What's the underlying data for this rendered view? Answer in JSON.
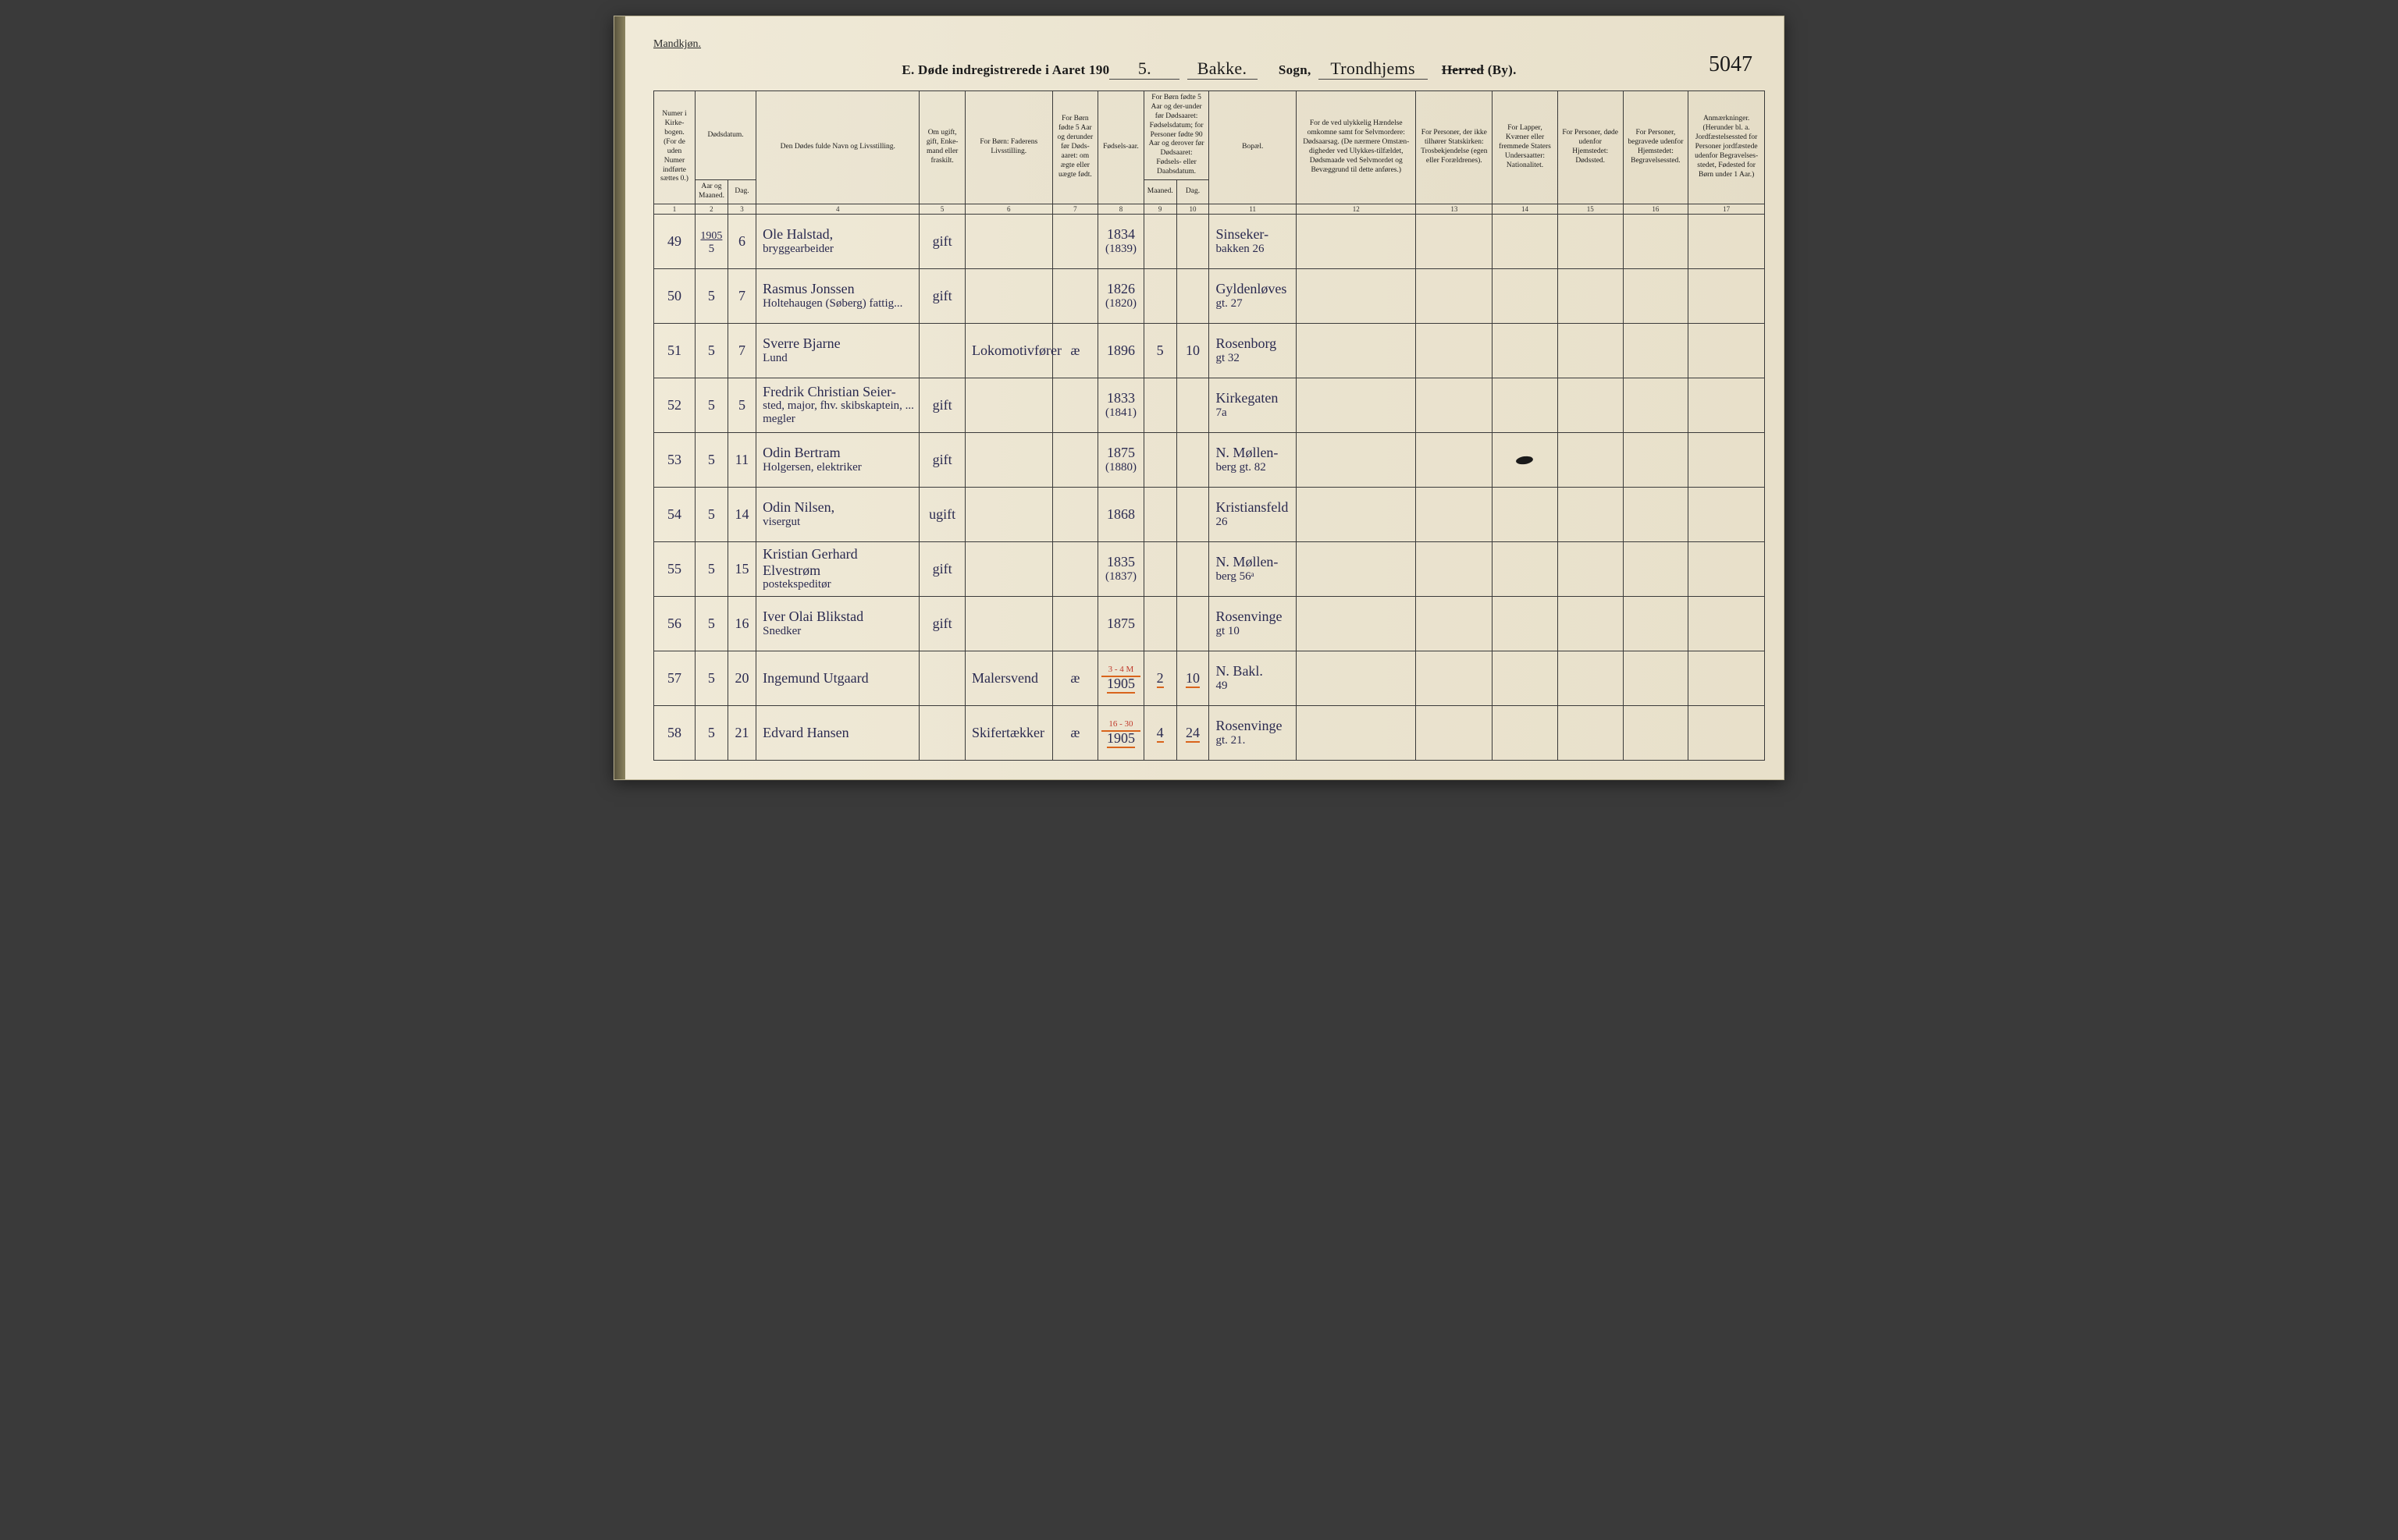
{
  "page": {
    "gender_label": "Mandkjøn.",
    "title_prefix": "E.  Døde indregistrerede i Aaret 190",
    "year_suffix": "5.",
    "parish_word": "Bakke.",
    "sogn_label": "Sogn,",
    "district_cursive": "Trondhjems",
    "herred_strike": "Herred",
    "by_label": "(By).",
    "page_code": "5047"
  },
  "headers": {
    "c1": "Numer i Kirke-bogen. (For de uden Numer indførte sættes 0.)",
    "c2_group": "Dødsdatum.",
    "c2": "Aar og Maaned.",
    "c3": "Dag.",
    "c4": "Den Dødes fulde Navn og Livsstilling.",
    "c5": "Om ugift, gift, Enke-mand eller fraskilt.",
    "c6": "For Børn: Faderens Livsstilling.",
    "c7": "For Børn fødte 5 Aar og derunder før Døds-aaret: om ægte eller uægte født.",
    "c8": "Fødsels-aar.",
    "c9_10_group": "For Børn fødte 5 Aar og der-under før Dødsaaret: Fødselsdatum; for Personer fødte 90 Aar og derover før Dødsaaret: Fødsels- eller Daabsdatum.",
    "c9": "Maaned.",
    "c10": "Dag.",
    "c11": "Bopæl.",
    "c12": "For de ved ulykkelig Hændelse omkomne samt for Selvmordere: Dødsaarsag. (De nærmere Omstæn-digheder ved Ulykkes-tilfældet, Dødsmaade ved Selvmordet og Bevæggrund til dette anføres.)",
    "c13": "For Personer, der ikke tilhører Statskirken: Trosbekjendelse (egen eller Forældrenes).",
    "c14": "For Lapper, Kvæner eller fremmede Staters Undersaatter: Nationalitet.",
    "c15": "For Personer, døde udenfor Hjemstedet: Dødssted.",
    "c16": "For Personer, begravede udenfor Hjemstedet: Begravelsessted.",
    "c17": "Anmærkninger. (Herunder bl. a. Jordfæstelsessted for Personer jordfæstede udenfor Begravelses-stedet, Fødested for Børn under 1 Aar.)"
  },
  "colnums": [
    "1",
    "2",
    "3",
    "4",
    "5",
    "6",
    "7",
    "8",
    "9",
    "10",
    "11",
    "12",
    "13",
    "14",
    "15",
    "16",
    "17"
  ],
  "rows": [
    {
      "num": "49",
      "year_top": "1905",
      "month": "5",
      "day": "6",
      "name": "Ole Halstad,",
      "name_sub": "bryggearbeider",
      "status": "gift",
      "father": "",
      "legit": "",
      "birth": "1834",
      "birth_sub": "(1839)",
      "bm": "",
      "bd": "",
      "residence": "Sinseker-",
      "residence_sub": "bakken 26",
      "c12": "",
      "c13": "",
      "c14": "",
      "c15": "",
      "c16": "",
      "c17": ""
    },
    {
      "num": "50",
      "month": "5",
      "day": "7",
      "name": "Rasmus Jonssen",
      "name_sub": "Holtehaugen (Søberg) fattig...",
      "status": "gift",
      "father": "",
      "legit": "",
      "birth": "1826",
      "birth_sub": "(1820)",
      "bm": "",
      "bd": "",
      "residence": "Gyldenløves",
      "residence_sub": "gt. 27",
      "c12": "",
      "c13": "",
      "c14": "",
      "c15": "",
      "c16": "",
      "c17": ""
    },
    {
      "num": "51",
      "month": "5",
      "day": "7",
      "name": "Sverre Bjarne",
      "name_sub": "Lund",
      "status": "",
      "father": "Lokomotivfører",
      "legit": "æ",
      "birth": "1896",
      "birth_sub": "",
      "bm": "5",
      "bd": "10",
      "residence": "Rosenborg",
      "residence_sub": "gt 32",
      "c12": "",
      "c13": "",
      "c14": "",
      "c15": "",
      "c16": "",
      "c17": ""
    },
    {
      "num": "52",
      "month": "5",
      "day": "5",
      "name": "Fredrik Christian Seier-",
      "name_sub": "sted, major, fhv. skibskaptein, ... megler",
      "status": "gift",
      "father": "",
      "legit": "",
      "birth": "1833",
      "birth_sub": "(1841)",
      "bm": "",
      "bd": "",
      "residence": "Kirkegaten",
      "residence_sub": "7a",
      "c12": "",
      "c13": "",
      "c14": "",
      "c15": "",
      "c16": "",
      "c17": ""
    },
    {
      "num": "53",
      "month": "5",
      "day": "11",
      "name": "Odin Bertram",
      "name_sub": "Holgersen, elektriker",
      "status": "gift",
      "father": "",
      "legit": "",
      "birth": "1875",
      "birth_sub": "(1880)",
      "bm": "",
      "bd": "",
      "residence": "N. Møllen-",
      "residence_sub": "berg gt. 82",
      "c12": "",
      "c13": "",
      "c14": "blot",
      "c15": "",
      "c16": "",
      "c17": ""
    },
    {
      "num": "54",
      "month": "5",
      "day": "14",
      "name": "Odin Nilsen,",
      "name_sub": "visergut",
      "status": "ugift",
      "father": "",
      "legit": "",
      "birth": "1868",
      "birth_sub": "",
      "bm": "",
      "bd": "",
      "residence": "Kristiansfeld",
      "residence_sub": "26",
      "c12": "",
      "c13": "",
      "c14": "",
      "c15": "",
      "c16": "",
      "c17": ""
    },
    {
      "num": "55",
      "month": "5",
      "day": "15",
      "name": "Kristian Gerhard Elvestrøm",
      "name_sub": "postekspeditør",
      "status": "gift",
      "father": "",
      "legit": "",
      "birth": "1835",
      "birth_sub": "(1837)",
      "bm": "",
      "bd": "",
      "residence": "N. Møllen-",
      "residence_sub": "berg 56ᵃ",
      "c12": "",
      "c13": "",
      "c14": "",
      "c15": "",
      "c16": "",
      "c17": ""
    },
    {
      "num": "56",
      "month": "5",
      "day": "16",
      "name": "Iver Olai Blikstad",
      "name_sub": "Snedker",
      "status": "gift",
      "father": "",
      "legit": "",
      "birth": "1875",
      "birth_sub": "",
      "bm": "",
      "bd": "",
      "residence": "Rosenvinge",
      "residence_sub": "gt 10",
      "c12": "",
      "c13": "",
      "c14": "",
      "c15": "",
      "c16": "",
      "c17": ""
    },
    {
      "num": "57",
      "month": "5",
      "day": "20",
      "name": "Ingemund Utgaard",
      "name_sub": "",
      "status": "",
      "father": "Malersvend",
      "legit": "æ",
      "birth": "1905",
      "birth_sub": "",
      "bm": "2",
      "bd": "10",
      "red_note": "3 - 4 M",
      "residence": "N. Bakl.",
      "residence_sub": "49",
      "orange": true,
      "c12": "",
      "c13": "",
      "c14": "",
      "c15": "",
      "c16": "",
      "c17": ""
    },
    {
      "num": "58",
      "month": "5",
      "day": "21",
      "name": "Edvard Hansen",
      "name_sub": "",
      "status": "",
      "father": "Skifertækker",
      "legit": "æ",
      "birth": "1905",
      "birth_sub": "",
      "bm": "4",
      "bd": "24",
      "red_note": "16 - 30",
      "residence": "Rosenvinge",
      "residence_sub": "gt. 21.",
      "orange": true,
      "c12": "",
      "c13": "",
      "c14": "",
      "c15": "",
      "c16": "",
      "c17": ""
    }
  ],
  "style": {
    "paper_bg": "#ebe4d0",
    "ink_text": "#1a1a1a",
    "handwriting_color": "#2a2a50",
    "rule_color": "#3a3a3a",
    "orange_underline": "#d9641c",
    "red_annotation": "#c0392b",
    "header_fontsize_pt": 9.5,
    "body_cursive_fontsize_pt": 18,
    "title_fontsize_pt": 17
  }
}
